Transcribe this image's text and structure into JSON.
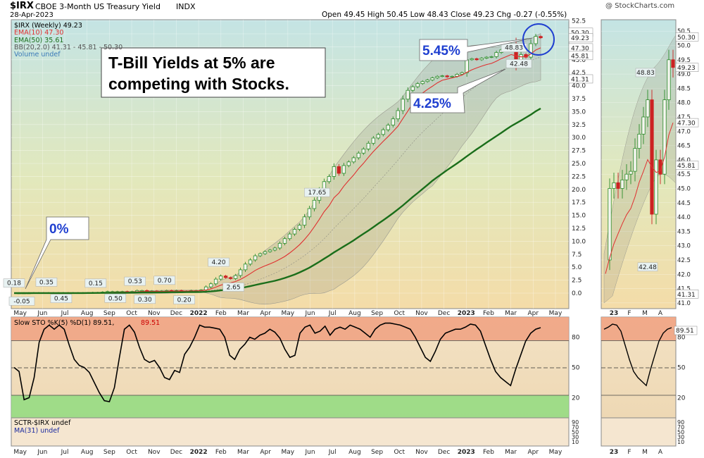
{
  "header": {
    "symbol": "$IRX",
    "name": "CBOE 3-Month US Treasury Yield",
    "exchange": "INDX",
    "date": "28-Apr-2023",
    "ohlc": "Open 49.45  High 50.45  Low 48.43  Close 49.23  Chg -0.27 (-0.55%)",
    "watermark": "@ StockCharts.com"
  },
  "legend": {
    "main": "$IRX (Weekly) 49.23",
    "ema10": "EMA(10) 47.30",
    "ema50": "EMA(50) 35.61",
    "bb": "BB(20,2.0) 41.31 - 45.81 - 50.30",
    "volume": "Volume undef"
  },
  "annotations": {
    "headline": [
      "T-Bill Yields at  5% are",
      "competing with Stocks."
    ],
    "zero": "0%",
    "high": "5.45%",
    "low": "4.25%"
  },
  "colors": {
    "up": "#2a8c2a",
    "down": "#cc2222",
    "ema10": "#e03030",
    "ema50": "#1a6e1a",
    "stoch_line": "#000000",
    "stoch_signal": "#cc0000",
    "overbought": "#f0a080",
    "oversold": "#90dc80",
    "callout_circle": "#1f3fd0"
  },
  "chart_data": [
    {
      "type": "candlestick",
      "title": "$IRX (Weekly)",
      "x_labels": [
        "May",
        "Jun",
        "Jul",
        "Aug",
        "Sep",
        "Oct",
        "Nov",
        "Dec",
        "2022",
        "Feb",
        "Mar",
        "Apr",
        "May",
        "Jun",
        "Jul",
        "Aug",
        "Sep",
        "Oct",
        "Nov",
        "Dec",
        "2023",
        "Feb",
        "Mar",
        "Apr",
        "May"
      ],
      "y_ticks": [
        0.0,
        2.5,
        5.0,
        7.5,
        10.0,
        12.5,
        15.0,
        17.5,
        20.0,
        22.5,
        25.0,
        27.5,
        30.0,
        32.5,
        35.0,
        37.5,
        40.0,
        42.5,
        45.0,
        47.5,
        50.0,
        52.5
      ],
      "ylim": [
        -1.5,
        53
      ],
      "price_labels": [
        "0.18",
        "-0.05",
        "0.35",
        "0.45",
        "0.15",
        "0.50",
        "0.53",
        "0.30",
        "0.70",
        "0.20",
        "4.20",
        "2.65",
        "17.65",
        "48.83",
        "42.48"
      ],
      "last_price_labels": [
        "50.30",
        "49.23",
        "47.30",
        "45.81",
        "41.31"
      ],
      "weekly_close": [
        0.0,
        0.02,
        0.02,
        0.03,
        0.05,
        0.05,
        0.04,
        0.05,
        0.05,
        0.05,
        0.06,
        0.05,
        0.05,
        0.05,
        0.05,
        0.05,
        0.1,
        0.1,
        0.2,
        0.3,
        0.3,
        0.3,
        0.3,
        0.2,
        0.3,
        0.5,
        0.5,
        0.3,
        0.4,
        0.3,
        0.4,
        0.5,
        0.4,
        0.5,
        0.4,
        0.4,
        0.5,
        0.5,
        0.6,
        1.2,
        1.8,
        2.7,
        3.3,
        3.0,
        2.8,
        3.4,
        4.5,
        5.6,
        6.4,
        7.2,
        7.6,
        8.0,
        8.3,
        8.7,
        9.6,
        10.5,
        11.4,
        12.3,
        13.1,
        14.7,
        16.3,
        17.9,
        19.8,
        21.5,
        22.5,
        24.4,
        23.1,
        24.6,
        25.3,
        26.1,
        27.0,
        27.8,
        28.9,
        29.9,
        30.6,
        31.5,
        32.4,
        33.6,
        35.2,
        37.4,
        39.1,
        39.8,
        40.4,
        40.8,
        41.1,
        41.5,
        41.8,
        41.9,
        41.7,
        41.8,
        42.2,
        42.5,
        45.0,
        45.2,
        45.0,
        45.3,
        45.5,
        45.6,
        46.4,
        46.9,
        47.5,
        48.1,
        44.1,
        46.0,
        45.5,
        48.1,
        49.5,
        49.23
      ],
      "ema10": [
        0.0,
        0.01,
        0.02,
        0.02,
        0.03,
        0.04,
        0.04,
        0.04,
        0.04,
        0.05,
        0.05,
        0.05,
        0.05,
        0.05,
        0.05,
        0.05,
        0.06,
        0.07,
        0.09,
        0.13,
        0.16,
        0.18,
        0.2,
        0.2,
        0.22,
        0.27,
        0.31,
        0.31,
        0.33,
        0.32,
        0.34,
        0.37,
        0.38,
        0.4,
        0.4,
        0.4,
        0.42,
        0.43,
        0.46,
        0.59,
        0.81,
        1.15,
        1.54,
        1.8,
        1.98,
        2.24,
        2.65,
        3.18,
        3.76,
        4.38,
        4.87,
        5.26,
        5.64,
        6.04,
        6.54,
        7.06,
        7.74,
        8.5,
        9.33,
        10.32,
        11.45,
        12.79,
        14.19,
        15.69,
        16.85,
        18.39,
        19.29,
        20.63,
        21.74,
        22.78,
        23.99,
        25.03,
        26.19,
        27.29,
        28.27,
        29.27,
        30.19,
        31.17,
        32.2,
        33.67,
        35.09,
        36.59,
        37.77,
        38.57,
        39.28,
        39.89,
        40.55,
        41.04,
        41.28,
        41.5,
        41.75,
        42.02,
        42.58,
        43.06,
        43.42,
        43.77,
        44.08,
        44.3,
        44.71,
        45.22,
        45.6,
        46.01,
        45.75,
        45.56,
        45.61,
        46.1,
        46.87,
        47.3
      ],
      "ema50": [
        0.0,
        0.0,
        0.0,
        0.0,
        0.01,
        0.01,
        0.01,
        0.01,
        0.02,
        0.02,
        0.02,
        0.02,
        0.02,
        0.02,
        0.02,
        0.03,
        0.03,
        0.04,
        0.04,
        0.05,
        0.06,
        0.07,
        0.08,
        0.08,
        0.09,
        0.11,
        0.12,
        0.13,
        0.13,
        0.14,
        0.15,
        0.16,
        0.17,
        0.17,
        0.18,
        0.19,
        0.2,
        0.21,
        0.22,
        0.26,
        0.33,
        0.42,
        0.53,
        0.63,
        0.72,
        0.82,
        0.97,
        1.15,
        1.35,
        1.56,
        1.78,
        1.97,
        2.17,
        2.38,
        2.63,
        2.92,
        3.25,
        3.59,
        3.99,
        4.43,
        4.91,
        5.46,
        6.03,
        6.63,
        7.21,
        7.85,
        8.43,
        9.01,
        9.58,
        10.17,
        10.81,
        11.44,
        12.06,
        12.72,
        13.39,
        14.05,
        14.73,
        15.42,
        16.16,
        16.92,
        17.73,
        18.53,
        19.29,
        20.08,
        20.87,
        21.67,
        22.38,
        23.05,
        23.74,
        24.38,
        25.01,
        25.68,
        26.38,
        27.07,
        27.73,
        28.37,
        29.02,
        29.66,
        30.29,
        30.91,
        31.57,
        32.2,
        32.73,
        33.28,
        33.85,
        34.41,
        35.07,
        35.61
      ]
    },
    {
      "type": "line",
      "title": "Slow STO %K(5) %D(1) 89.51, 89.51",
      "y_ticks": [
        20,
        50,
        80
      ],
      "ylim": [
        0,
        100
      ],
      "overbought": 80,
      "oversold": 20,
      "series": [
        {
          "name": "%K(5)",
          "values": [
            50,
            46,
            18,
            20,
            40,
            75,
            88,
            92,
            88,
            92,
            88,
            72,
            58,
            52,
            50,
            45,
            35,
            25,
            17,
            16,
            30,
            60,
            88,
            92,
            85,
            70,
            58,
            55,
            57,
            50,
            40,
            38,
            47,
            45,
            63,
            70,
            80,
            92,
            90,
            90,
            89,
            88,
            80,
            62,
            58,
            68,
            73,
            80,
            78,
            82,
            84,
            88,
            85,
            79,
            68,
            60,
            62,
            84,
            90,
            92,
            84,
            86,
            91,
            82,
            88,
            90,
            88,
            92,
            90,
            88,
            84,
            80,
            88,
            92,
            94,
            94,
            93,
            92,
            90,
            88,
            80,
            70,
            60,
            56,
            66,
            78,
            84,
            86,
            88,
            88,
            90,
            93,
            92,
            86,
            72,
            58,
            46,
            40,
            36,
            32,
            48,
            62,
            76,
            84,
            88,
            89.51
          ]
        },
        {
          "name": "%D(1)",
          "values": []
        }
      ]
    }
  ],
  "stoch": {
    "legend_main": "Slow STO %K(5) %D(1) 89.51,",
    "legend_val": " 89.51",
    "last_label": "89.51",
    "ticks": [
      "80",
      "50",
      "20"
    ]
  },
  "sctr": {
    "legend": "SCTR-$IRX undef",
    "ma": "MA(31) undef",
    "ticks": [
      "90",
      "70",
      "50",
      "30",
      "10"
    ]
  },
  "mini": {
    "x_labels": [
      "23",
      "F",
      "M",
      "A"
    ],
    "y_ticks": [
      "50.5",
      "50.0",
      "49.5",
      "49.0",
      "48.5",
      "48.0",
      "47.5",
      "47.0",
      "46.5",
      "46.0",
      "45.5",
      "45.0",
      "44.5",
      "44.0",
      "43.5",
      "43.0",
      "42.5",
      "42.0",
      "41.5",
      "41.0"
    ],
    "label_high": "48.83",
    "label_low": "42.48",
    "last_labels": [
      "50.30",
      "49.23",
      "47.30",
      "45.81",
      "41.31"
    ],
    "stoch_ticks": [
      "80",
      "50",
      "20"
    ],
    "stoch_last": "89.51",
    "sctr_ticks": [
      "90",
      "70",
      "50",
      "30",
      "10"
    ]
  }
}
